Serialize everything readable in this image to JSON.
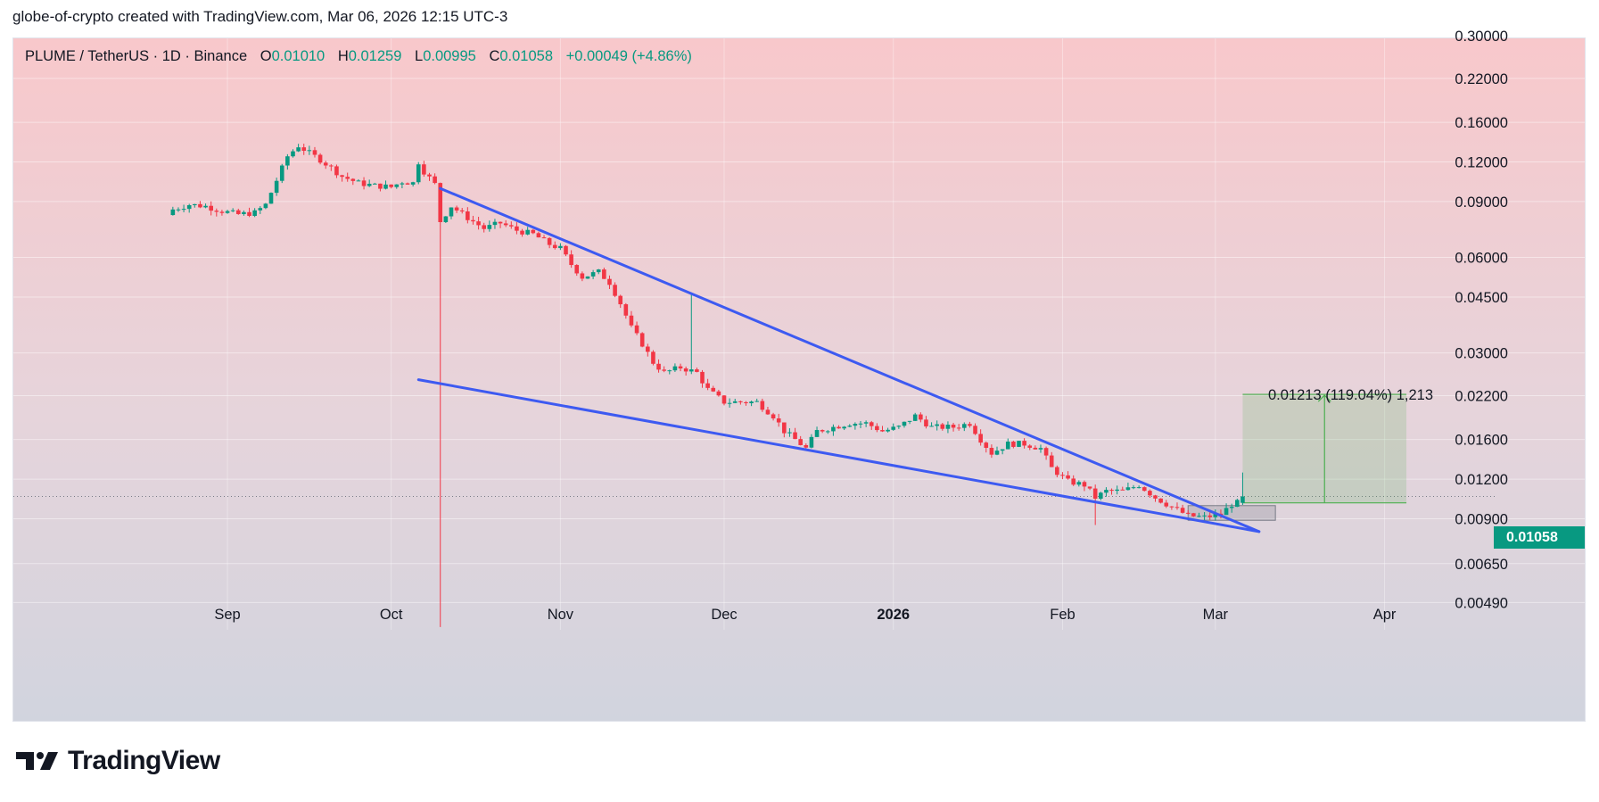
{
  "header": {
    "text": "globe-of-crypto created with TradingView.com, Mar 06, 2026 12:15 UTC-3"
  },
  "legend": {
    "symbol": "PLUME / TetherUS · 1D · Binance",
    "open_label": "O",
    "open": "0.01010",
    "high_label": "H",
    "high": "0.01259",
    "low_label": "L",
    "low": "0.00995",
    "close_label": "C",
    "close": "0.01058",
    "change": "+0.00049 (+4.86%)"
  },
  "price_tag": "0.01058",
  "measure_label": "0.01213 (119.04%) 1,213",
  "brand": {
    "name": "TradingView",
    "logo_icon": "tradingview-logo-icon"
  },
  "colors": {
    "up": "#089981",
    "down": "#f23645",
    "trendline": "#3d5af1",
    "measure": "#4caf50"
  },
  "chart_data": {
    "type": "candlestick",
    "symbol": "PLUME / TetherUS",
    "interval": "1D",
    "exchange": "Binance",
    "y_scale": "log",
    "ylim": [
      0.0036,
      0.3
    ],
    "y_ticks": [
      "0.30000",
      "0.22000",
      "0.16000",
      "0.12000",
      "0.09000",
      "0.06000",
      "0.04500",
      "0.03000",
      "0.02200",
      "0.01600",
      "0.01200",
      "0.00900",
      "0.00650",
      "0.00490"
    ],
    "x_range": [
      "2025-08-15",
      "2026-04-13"
    ],
    "x_ticks": [
      {
        "date": "2025-09-01",
        "label": "Sep"
      },
      {
        "date": "2025-10-01",
        "label": "Oct"
      },
      {
        "date": "2025-11-01",
        "label": "Nov"
      },
      {
        "date": "2025-12-01",
        "label": "Dec"
      },
      {
        "date": "2026-01-01",
        "label": "2026"
      },
      {
        "date": "2026-02-01",
        "label": "Feb"
      },
      {
        "date": "2026-03-01",
        "label": "Mar"
      },
      {
        "date": "2026-04-01",
        "label": "Apr"
      }
    ],
    "close_series": [
      [
        "2025-08-22",
        0.085
      ],
      [
        "2025-08-25",
        0.088
      ],
      [
        "2025-08-28",
        0.087
      ],
      [
        "2025-08-31",
        0.084
      ],
      [
        "2025-09-03",
        0.082
      ],
      [
        "2025-09-06",
        0.083
      ],
      [
        "2025-09-08",
        0.088
      ],
      [
        "2025-09-10",
        0.105
      ],
      [
        "2025-09-12",
        0.125
      ],
      [
        "2025-09-14",
        0.135
      ],
      [
        "2025-09-16",
        0.128
      ],
      [
        "2025-09-18",
        0.122
      ],
      [
        "2025-09-20",
        0.115
      ],
      [
        "2025-09-22",
        0.108
      ],
      [
        "2025-09-25",
        0.103
      ],
      [
        "2025-09-28",
        0.101
      ],
      [
        "2025-10-01",
        0.1
      ],
      [
        "2025-10-03",
        0.104
      ],
      [
        "2025-10-05",
        0.103
      ],
      [
        "2025-10-06",
        0.12
      ],
      [
        "2025-10-07",
        0.112
      ],
      [
        "2025-10-09",
        0.102
      ],
      [
        "2025-10-10",
        0.078
      ],
      [
        "2025-10-12",
        0.087
      ],
      [
        "2025-10-15",
        0.08
      ],
      [
        "2025-10-18",
        0.074
      ],
      [
        "2025-10-21",
        0.077
      ],
      [
        "2025-10-24",
        0.073
      ],
      [
        "2025-10-27",
        0.071
      ],
      [
        "2025-10-30",
        0.066
      ],
      [
        "2025-11-01",
        0.064
      ],
      [
        "2025-11-03",
        0.057
      ],
      [
        "2025-11-05",
        0.052
      ],
      [
        "2025-11-08",
        0.054
      ],
      [
        "2025-11-10",
        0.05
      ],
      [
        "2025-11-12",
        0.043
      ],
      [
        "2025-11-14",
        0.036
      ],
      [
        "2025-11-16",
        0.032
      ],
      [
        "2025-11-18",
        0.028
      ],
      [
        "2025-11-20",
        0.026
      ],
      [
        "2025-11-23",
        0.027
      ],
      [
        "2025-11-26",
        0.026
      ],
      [
        "2025-11-28",
        0.023
      ],
      [
        "2025-12-01",
        0.021
      ],
      [
        "2025-12-04",
        0.021
      ],
      [
        "2025-12-07",
        0.021
      ],
      [
        "2025-12-10",
        0.019
      ],
      [
        "2025-12-12",
        0.017
      ],
      [
        "2025-12-14",
        0.016
      ],
      [
        "2025-12-16",
        0.015
      ],
      [
        "2025-12-18",
        0.017
      ],
      [
        "2025-12-21",
        0.0175
      ],
      [
        "2025-12-24",
        0.018
      ],
      [
        "2025-12-27",
        0.018
      ],
      [
        "2025-12-30",
        0.017
      ],
      [
        "2026-01-02",
        0.0175
      ],
      [
        "2026-01-05",
        0.019
      ],
      [
        "2026-01-08",
        0.0175
      ],
      [
        "2026-01-12",
        0.0175
      ],
      [
        "2026-01-15",
        0.018
      ],
      [
        "2026-01-17",
        0.016
      ],
      [
        "2026-01-19",
        0.0145
      ],
      [
        "2026-01-22",
        0.0155
      ],
      [
        "2026-01-25",
        0.0155
      ],
      [
        "2026-01-28",
        0.015
      ],
      [
        "2026-01-30",
        0.013
      ],
      [
        "2026-02-02",
        0.0118
      ],
      [
        "2026-02-05",
        0.0115
      ],
      [
        "2026-02-07",
        0.0105
      ],
      [
        "2026-02-09",
        0.011
      ],
      [
        "2026-02-12",
        0.011
      ],
      [
        "2026-02-15",
        0.0115
      ],
      [
        "2026-02-18",
        0.0105
      ],
      [
        "2026-02-21",
        0.0098
      ],
      [
        "2026-02-24",
        0.0092
      ],
      [
        "2026-02-27",
        0.0091
      ],
      [
        "2026-03-02",
        0.0093
      ],
      [
        "2026-03-04",
        0.01
      ],
      [
        "2026-03-05",
        0.0101
      ],
      [
        "2026-03-06",
        0.01058
      ]
    ],
    "notable_wicks": [
      {
        "date": "2025-10-10",
        "low": 0.0041
      },
      {
        "date": "2025-11-25",
        "high": 0.0465
      },
      {
        "date": "2026-02-07",
        "low": 0.0086
      }
    ],
    "last_bar": {
      "date": "2026-03-06",
      "open": 0.0101,
      "high": 0.01259,
      "low": 0.00995,
      "close": 0.01058
    },
    "drawings": [
      {
        "type": "trendline",
        "name": "upper-trendline",
        "from": [
          "2025-10-10",
          0.099
        ],
        "to": [
          "2026-03-09",
          0.0082
        ]
      },
      {
        "type": "trendline",
        "name": "lower-trendline",
        "from": [
          "2025-10-06",
          0.0247
        ],
        "to": [
          "2026-03-09",
          0.0082
        ]
      },
      {
        "type": "rectangle",
        "name": "accumulation-box",
        "from": [
          "2026-02-24",
          0.0099
        ],
        "to": [
          "2026-03-12",
          0.0089
        ]
      },
      {
        "type": "price_range",
        "name": "target-measure",
        "from": [
          "2026-03-06",
          0.0101
        ],
        "to": [
          "2026-04-05",
          0.0222
        ],
        "label": "0.01213 (119.04%) 1,213"
      }
    ]
  }
}
